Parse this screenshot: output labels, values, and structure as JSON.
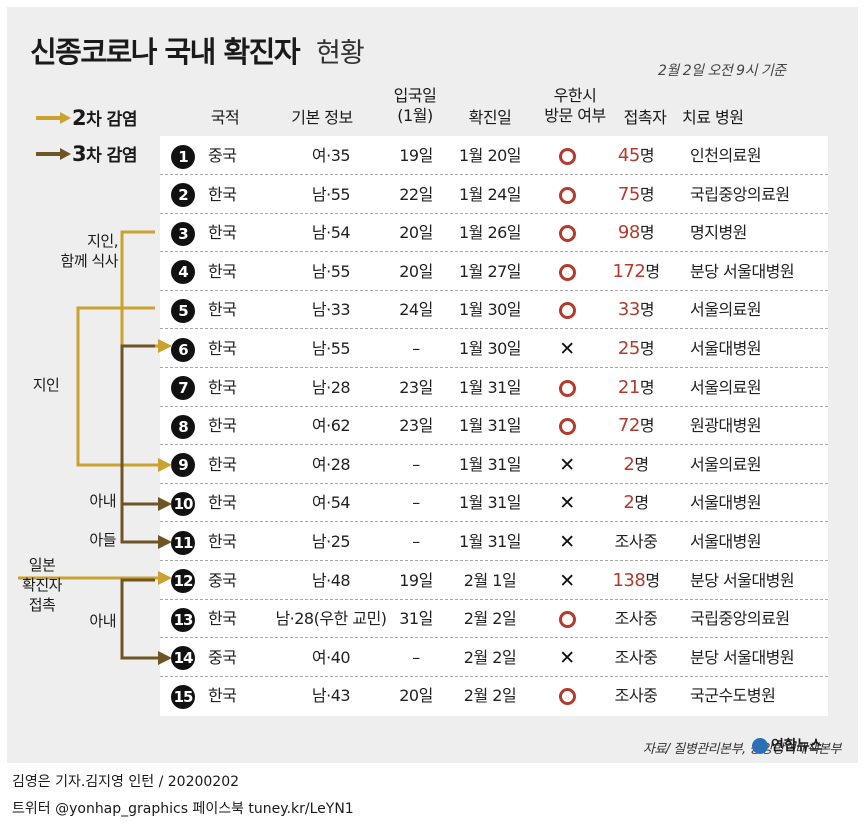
{
  "title": {
    "main": "신종코로나 국내 확진자",
    "sub": "현황"
  },
  "date": "2월 2일 오전 9시 기준",
  "legend": [
    {
      "num": "2",
      "text": "차 감염",
      "color": "#c9a22f"
    },
    {
      "num": "3",
      "text": "차 감염",
      "color": "#6f5424"
    }
  ],
  "headers": {
    "nationality": "국적",
    "basic_info": "기본 정보",
    "entry_line1": "입국일",
    "entry_line2": "(1월)",
    "confirmed": "확진일",
    "visit_line1": "우한시",
    "visit_line2": "방문 여부",
    "contacts": "접촉자",
    "hospital": "치료 병원"
  },
  "rows": [
    {
      "no": "1",
      "nationality": "중국",
      "info": "여·35",
      "entry": "19일",
      "confirmed": "1월 20일",
      "visited": true,
      "contacts_num": "45",
      "contacts_unit": "명",
      "hospital": "인천의료원"
    },
    {
      "no": "2",
      "nationality": "한국",
      "info": "남·55",
      "entry": "22일",
      "confirmed": "1월 24일",
      "visited": true,
      "contacts_num": "75",
      "contacts_unit": "명",
      "hospital": "국립중앙의료원"
    },
    {
      "no": "3",
      "nationality": "한국",
      "info": "남·54",
      "entry": "20일",
      "confirmed": "1월 26일",
      "visited": true,
      "contacts_num": "98",
      "contacts_unit": "명",
      "hospital": "명지병원"
    },
    {
      "no": "4",
      "nationality": "한국",
      "info": "남·55",
      "entry": "20일",
      "confirmed": "1월 27일",
      "visited": true,
      "contacts_num": "172",
      "contacts_unit": "명",
      "hospital": "분당 서울대병원"
    },
    {
      "no": "5",
      "nationality": "한국",
      "info": "남·33",
      "entry": "24일",
      "confirmed": "1월 30일",
      "visited": true,
      "contacts_num": "33",
      "contacts_unit": "명",
      "hospital": "서울의료원"
    },
    {
      "no": "6",
      "nationality": "한국",
      "info": "남·55",
      "entry": "–",
      "confirmed": "1월 30일",
      "visited": false,
      "contacts_num": "25",
      "contacts_unit": "명",
      "hospital": "서울대병원"
    },
    {
      "no": "7",
      "nationality": "한국",
      "info": "남·28",
      "entry": "23일",
      "confirmed": "1월 31일",
      "visited": true,
      "contacts_num": "21",
      "contacts_unit": "명",
      "hospital": "서울의료원"
    },
    {
      "no": "8",
      "nationality": "한국",
      "info": "여·62",
      "entry": "23일",
      "confirmed": "1월 31일",
      "visited": true,
      "contacts_num": "72",
      "contacts_unit": "명",
      "hospital": "원광대병원"
    },
    {
      "no": "9",
      "nationality": "한국",
      "info": "여·28",
      "entry": "–",
      "confirmed": "1월 31일",
      "visited": false,
      "contacts_num": "2",
      "contacts_unit": "명",
      "hospital": "서울의료원"
    },
    {
      "no": "10",
      "nationality": "한국",
      "info": "여·54",
      "entry": "–",
      "confirmed": "1월 31일",
      "visited": false,
      "contacts_num": "2",
      "contacts_unit": "명",
      "hospital": "서울대병원"
    },
    {
      "no": "11",
      "nationality": "한국",
      "info": "남·25",
      "entry": "–",
      "confirmed": "1월 31일",
      "visited": false,
      "contacts_num": "",
      "contacts_unit": "조사중",
      "hospital": "서울대병원"
    },
    {
      "no": "12",
      "nationality": "중국",
      "info": "남·48",
      "entry": "19일",
      "confirmed": "2월 1일",
      "visited": false,
      "contacts_num": "138",
      "contacts_unit": "명",
      "hospital": "분당 서울대병원"
    },
    {
      "no": "13",
      "nationality": "한국",
      "info": "남·28(우한 교민)",
      "entry": "31일",
      "confirmed": "2월 2일",
      "visited": true,
      "contacts_num": "",
      "contacts_unit": "조사중",
      "hospital": "국립중앙의료원"
    },
    {
      "no": "14",
      "nationality": "중국",
      "info": "여·40",
      "entry": "–",
      "confirmed": "2월 2일",
      "visited": false,
      "contacts_num": "",
      "contacts_unit": "조사중",
      "hospital": "분당 서울대병원"
    },
    {
      "no": "15",
      "nationality": "한국",
      "info": "남·43",
      "entry": "20일",
      "confirmed": "2월 2일",
      "visited": true,
      "contacts_num": "",
      "contacts_unit": "조사중",
      "hospital": "국군수도병원"
    }
  ],
  "relations": {
    "acquaintance_meal_line1": "지인,",
    "acquaintance_meal_line2": "함께 식사",
    "acquaintance": "지인",
    "wife_1": "아내",
    "son": "아들",
    "japan_line1": "일본",
    "japan_line2": "확진자",
    "japan_line3": "접촉",
    "wife_2": "아내"
  },
  "source": "자료/ 질병관리본부, 중앙방역대책본부",
  "brand": "연합뉴스",
  "byline": "김영은 기자.김지영 인턴 / 20200202",
  "social": "트위터 @yonhap_graphics  페이스북 tuney.kr/LeYN1",
  "colors": {
    "second_infection": "#c9a22f",
    "third_infection": "#6f5424",
    "accent_red": "#b23b2e"
  }
}
